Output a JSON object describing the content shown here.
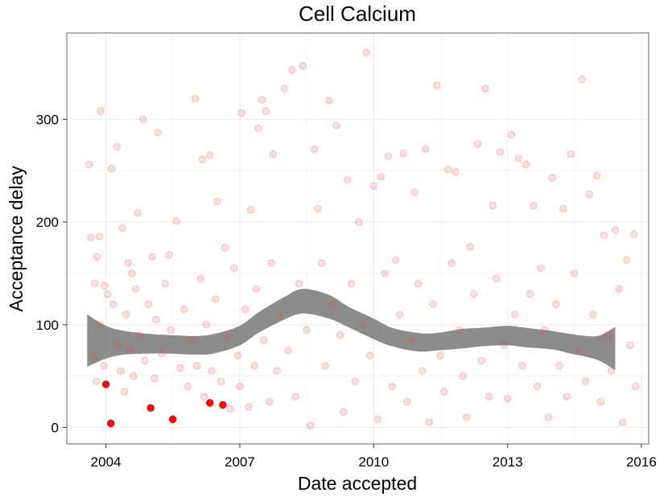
{
  "chart_data": {
    "type": "scatter",
    "title": "Cell Calcium",
    "xlabel": "Date accepted",
    "ylabel": "Acceptance delay",
    "xlim": [
      "2003-02-15",
      "2016-03-01"
    ],
    "ylim": [
      -16,
      384
    ],
    "x_ticks": [
      "2004",
      "2007",
      "2010",
      "2013",
      "2016"
    ],
    "y_ticks": [
      "0",
      "100",
      "200",
      "300"
    ],
    "grid": true,
    "legend": "none",
    "colors": {
      "point": "#e8474a",
      "highlight": "#e81010",
      "smooth_band": "#7f7f7f",
      "grid": "#ececec",
      "frame": "#7f7f7f"
    },
    "highlighted_points": [
      {
        "x": "2004-01-01",
        "y": 42
      },
      {
        "x": "2004-02-10",
        "y": 4
      },
      {
        "x": "2005-01-01",
        "y": 19
      },
      {
        "x": "2005-07-01",
        "y": 8
      },
      {
        "x": "2006-05-01",
        "y": 24
      },
      {
        "x": "2006-08-15",
        "y": 22
      }
    ],
    "points": [
      {
        "x": "2003-08-15",
        "y": 256
      },
      {
        "x": "2003-09-01",
        "y": 185
      },
      {
        "x": "2003-10-01",
        "y": 140
      },
      {
        "x": "2003-10-20",
        "y": 166
      },
      {
        "x": "2003-11-10",
        "y": 186
      },
      {
        "x": "2003-11-20",
        "y": 308
      },
      {
        "x": "2003-12-20",
        "y": 138
      },
      {
        "x": "2004-02-15",
        "y": 252
      },
      {
        "x": "2004-04-01",
        "y": 273
      },
      {
        "x": "2004-05-15",
        "y": 194
      },
      {
        "x": "2004-07-01",
        "y": 160
      },
      {
        "x": "2004-09-15",
        "y": 209
      },
      {
        "x": "2004-11-01",
        "y": 300
      },
      {
        "x": "2005-01-15",
        "y": 166
      },
      {
        "x": "2005-03-01",
        "y": 287
      },
      {
        "x": "2005-06-01",
        "y": 168
      },
      {
        "x": "2005-08-01",
        "y": 201
      },
      {
        "x": "2006-01-01",
        "y": 320
      },
      {
        "x": "2006-03-01",
        "y": 261
      },
      {
        "x": "2006-05-01",
        "y": 265
      },
      {
        "x": "2006-07-01",
        "y": 220
      },
      {
        "x": "2006-09-01",
        "y": 175
      },
      {
        "x": "2007-01-15",
        "y": 306
      },
      {
        "x": "2007-04-01",
        "y": 212
      },
      {
        "x": "2007-06-01",
        "y": 291
      },
      {
        "x": "2007-07-01",
        "y": 319
      },
      {
        "x": "2007-08-01",
        "y": 308
      },
      {
        "x": "2007-10-01",
        "y": 266
      },
      {
        "x": "2008-01-01",
        "y": 330
      },
      {
        "x": "2008-03-01",
        "y": 348
      },
      {
        "x": "2008-06-01",
        "y": 352
      },
      {
        "x": "2008-09-01",
        "y": 271
      },
      {
        "x": "2008-10-01",
        "y": 213
      },
      {
        "x": "2009-01-01",
        "y": 318
      },
      {
        "x": "2009-03-01",
        "y": 294
      },
      {
        "x": "2009-06-01",
        "y": 241
      },
      {
        "x": "2009-09-01",
        "y": 200
      },
      {
        "x": "2009-11-01",
        "y": 365
      },
      {
        "x": "2010-01-01",
        "y": 235
      },
      {
        "x": "2010-03-01",
        "y": 244
      },
      {
        "x": "2010-05-01",
        "y": 264
      },
      {
        "x": "2010-07-01",
        "y": 163
      },
      {
        "x": "2010-09-01",
        "y": 267
      },
      {
        "x": "2010-12-01",
        "y": 229
      },
      {
        "x": "2011-03-01",
        "y": 271
      },
      {
        "x": "2011-06-01",
        "y": 333
      },
      {
        "x": "2011-09-01",
        "y": 251
      },
      {
        "x": "2011-11-01",
        "y": 249
      },
      {
        "x": "2012-03-01",
        "y": 176
      },
      {
        "x": "2012-05-01",
        "y": 276
      },
      {
        "x": "2012-07-01",
        "y": 330
      },
      {
        "x": "2012-09-01",
        "y": 216
      },
      {
        "x": "2012-11-01",
        "y": 268
      },
      {
        "x": "2013-02-01",
        "y": 285
      },
      {
        "x": "2013-04-01",
        "y": 262
      },
      {
        "x": "2013-06-01",
        "y": 256
      },
      {
        "x": "2013-08-01",
        "y": 216
      },
      {
        "x": "2013-10-01",
        "y": 155
      },
      {
        "x": "2014-01-01",
        "y": 243
      },
      {
        "x": "2014-04-01",
        "y": 213
      },
      {
        "x": "2014-06-01",
        "y": 266
      },
      {
        "x": "2014-09-01",
        "y": 339
      },
      {
        "x": "2014-11-01",
        "y": 227
      },
      {
        "x": "2015-01-01",
        "y": 245
      },
      {
        "x": "2015-03-01",
        "y": 187
      },
      {
        "x": "2015-06-01",
        "y": 192
      },
      {
        "x": "2015-09-01",
        "y": 163
      },
      {
        "x": "2015-11-01",
        "y": 188
      },
      {
        "x": "2003-09-15",
        "y": 70
      },
      {
        "x": "2003-10-15",
        "y": 45
      },
      {
        "x": "2003-11-15",
        "y": 100
      },
      {
        "x": "2003-12-15",
        "y": 60
      },
      {
        "x": "2004-01-15",
        "y": 130
      },
      {
        "x": "2004-03-01",
        "y": 120
      },
      {
        "x": "2004-04-15",
        "y": 80
      },
      {
        "x": "2004-05-01",
        "y": 55
      },
      {
        "x": "2004-06-01",
        "y": 35
      },
      {
        "x": "2004-06-15",
        "y": 110
      },
      {
        "x": "2004-07-15",
        "y": 75
      },
      {
        "x": "2004-08-01",
        "y": 150
      },
      {
        "x": "2004-08-15",
        "y": 50
      },
      {
        "x": "2004-09-01",
        "y": 135
      },
      {
        "x": "2004-10-01",
        "y": 90
      },
      {
        "x": "2004-11-15",
        "y": 65
      },
      {
        "x": "2004-12-15",
        "y": 120
      },
      {
        "x": "2005-02-01",
        "y": 48
      },
      {
        "x": "2005-02-15",
        "y": 105
      },
      {
        "x": "2005-04-01",
        "y": 72
      },
      {
        "x": "2005-05-01",
        "y": 140
      },
      {
        "x": "2005-06-15",
        "y": 95
      },
      {
        "x": "2005-09-01",
        "y": 58
      },
      {
        "x": "2005-10-01",
        "y": 115
      },
      {
        "x": "2005-11-01",
        "y": 40
      },
      {
        "x": "2005-12-01",
        "y": 85
      },
      {
        "x": "2006-01-15",
        "y": 60
      },
      {
        "x": "2006-02-15",
        "y": 145
      },
      {
        "x": "2006-03-15",
        "y": 30
      },
      {
        "x": "2006-04-01",
        "y": 100
      },
      {
        "x": "2006-05-15",
        "y": 55
      },
      {
        "x": "2006-06-15",
        "y": 125
      },
      {
        "x": "2006-08-01",
        "y": 45
      },
      {
        "x": "2006-09-15",
        "y": 88
      },
      {
        "x": "2006-10-15",
        "y": 18
      },
      {
        "x": "2006-11-15",
        "y": 155
      },
      {
        "x": "2006-12-15",
        "y": 70
      },
      {
        "x": "2007-01-01",
        "y": 40
      },
      {
        "x": "2007-02-15",
        "y": 115
      },
      {
        "x": "2007-03-15",
        "y": 20
      },
      {
        "x": "2007-05-01",
        "y": 60
      },
      {
        "x": "2007-05-15",
        "y": 135
      },
      {
        "x": "2007-07-15",
        "y": 85
      },
      {
        "x": "2007-09-01",
        "y": 25
      },
      {
        "x": "2007-09-15",
        "y": 160
      },
      {
        "x": "2007-11-01",
        "y": 55
      },
      {
        "x": "2007-12-01",
        "y": 110
      },
      {
        "x": "2008-02-01",
        "y": 75
      },
      {
        "x": "2008-04-01",
        "y": 30
      },
      {
        "x": "2008-05-01",
        "y": 140
      },
      {
        "x": "2008-07-01",
        "y": 95
      },
      {
        "x": "2008-08-01",
        "y": 2
      },
      {
        "x": "2008-11-01",
        "y": 160
      },
      {
        "x": "2008-12-01",
        "y": 60
      },
      {
        "x": "2009-02-01",
        "y": 120
      },
      {
        "x": "2009-04-01",
        "y": 90
      },
      {
        "x": "2009-05-01",
        "y": 15
      },
      {
        "x": "2009-07-01",
        "y": 140
      },
      {
        "x": "2009-08-01",
        "y": 45
      },
      {
        "x": "2009-10-01",
        "y": 100
      },
      {
        "x": "2009-12-01",
        "y": 70
      },
      {
        "x": "2010-02-01",
        "y": 8
      },
      {
        "x": "2010-04-01",
        "y": 150
      },
      {
        "x": "2010-06-01",
        "y": 40
      },
      {
        "x": "2010-08-01",
        "y": 110
      },
      {
        "x": "2010-10-01",
        "y": 25
      },
      {
        "x": "2010-11-01",
        "y": 85
      },
      {
        "x": "2011-01-01",
        "y": 140
      },
      {
        "x": "2011-02-01",
        "y": 55
      },
      {
        "x": "2011-04-01",
        "y": 5
      },
      {
        "x": "2011-05-01",
        "y": 120
      },
      {
        "x": "2011-07-01",
        "y": 70
      },
      {
        "x": "2011-08-01",
        "y": 35
      },
      {
        "x": "2011-10-01",
        "y": 160
      },
      {
        "x": "2011-12-01",
        "y": 95
      },
      {
        "x": "2012-01-01",
        "y": 50
      },
      {
        "x": "2012-02-01",
        "y": 10
      },
      {
        "x": "2012-04-01",
        "y": 130
      },
      {
        "x": "2012-06-01",
        "y": 65
      },
      {
        "x": "2012-08-01",
        "y": 30
      },
      {
        "x": "2012-10-01",
        "y": 145
      },
      {
        "x": "2012-12-01",
        "y": 80
      },
      {
        "x": "2013-01-01",
        "y": 28
      },
      {
        "x": "2013-03-01",
        "y": 110
      },
      {
        "x": "2013-05-01",
        "y": 60
      },
      {
        "x": "2013-07-01",
        "y": 130
      },
      {
        "x": "2013-09-01",
        "y": 40
      },
      {
        "x": "2013-11-01",
        "y": 95
      },
      {
        "x": "2013-12-01",
        "y": 10
      },
      {
        "x": "2014-02-01",
        "y": 120
      },
      {
        "x": "2014-03-01",
        "y": 60
      },
      {
        "x": "2014-05-01",
        "y": 30
      },
      {
        "x": "2014-07-01",
        "y": 150
      },
      {
        "x": "2014-08-01",
        "y": 75
      },
      {
        "x": "2014-10-01",
        "y": 45
      },
      {
        "x": "2014-12-01",
        "y": 110
      },
      {
        "x": "2015-02-01",
        "y": 25
      },
      {
        "x": "2015-04-01",
        "y": 90
      },
      {
        "x": "2015-05-01",
        "y": 55
      },
      {
        "x": "2015-07-01",
        "y": 135
      },
      {
        "x": "2015-08-01",
        "y": 5
      },
      {
        "x": "2015-10-01",
        "y": 80
      },
      {
        "x": "2015-11-15",
        "y": 40
      }
    ],
    "smooth": [
      {
        "x": "2003-08-01",
        "ymin": 59,
        "ymax": 110
      },
      {
        "x": "2004-01-01",
        "ymin": 67,
        "ymax": 99
      },
      {
        "x": "2004-06-01",
        "ymin": 71,
        "ymax": 94
      },
      {
        "x": "2005-01-01",
        "ymin": 72,
        "ymax": 91
      },
      {
        "x": "2005-06-01",
        "ymin": 72,
        "ymax": 90
      },
      {
        "x": "2006-01-01",
        "ymin": 71,
        "ymax": 89
      },
      {
        "x": "2006-06-01",
        "ymin": 72,
        "ymax": 91
      },
      {
        "x": "2007-01-01",
        "ymin": 80,
        "ymax": 99
      },
      {
        "x": "2007-06-01",
        "ymin": 92,
        "ymax": 112
      },
      {
        "x": "2008-01-01",
        "ymin": 105,
        "ymax": 127
      },
      {
        "x": "2008-06-01",
        "ymin": 111,
        "ymax": 135
      },
      {
        "x": "2009-01-01",
        "ymin": 106,
        "ymax": 129
      },
      {
        "x": "2009-06-01",
        "ymin": 98,
        "ymax": 118
      },
      {
        "x": "2010-01-01",
        "ymin": 86,
        "ymax": 106
      },
      {
        "x": "2010-06-01",
        "ymin": 79,
        "ymax": 97
      },
      {
        "x": "2011-01-01",
        "ymin": 74,
        "ymax": 92
      },
      {
        "x": "2011-06-01",
        "ymin": 75,
        "ymax": 92
      },
      {
        "x": "2012-01-01",
        "ymin": 77,
        "ymax": 96
      },
      {
        "x": "2012-06-01",
        "ymin": 79,
        "ymax": 97
      },
      {
        "x": "2013-01-01",
        "ymin": 80,
        "ymax": 99
      },
      {
        "x": "2013-06-01",
        "ymin": 78,
        "ymax": 97
      },
      {
        "x": "2014-01-01",
        "ymin": 76,
        "ymax": 94
      },
      {
        "x": "2014-06-01",
        "ymin": 72,
        "ymax": 91
      },
      {
        "x": "2015-01-01",
        "ymin": 66,
        "ymax": 89
      },
      {
        "x": "2015-06-01",
        "ymin": 56,
        "ymax": 98
      }
    ]
  }
}
